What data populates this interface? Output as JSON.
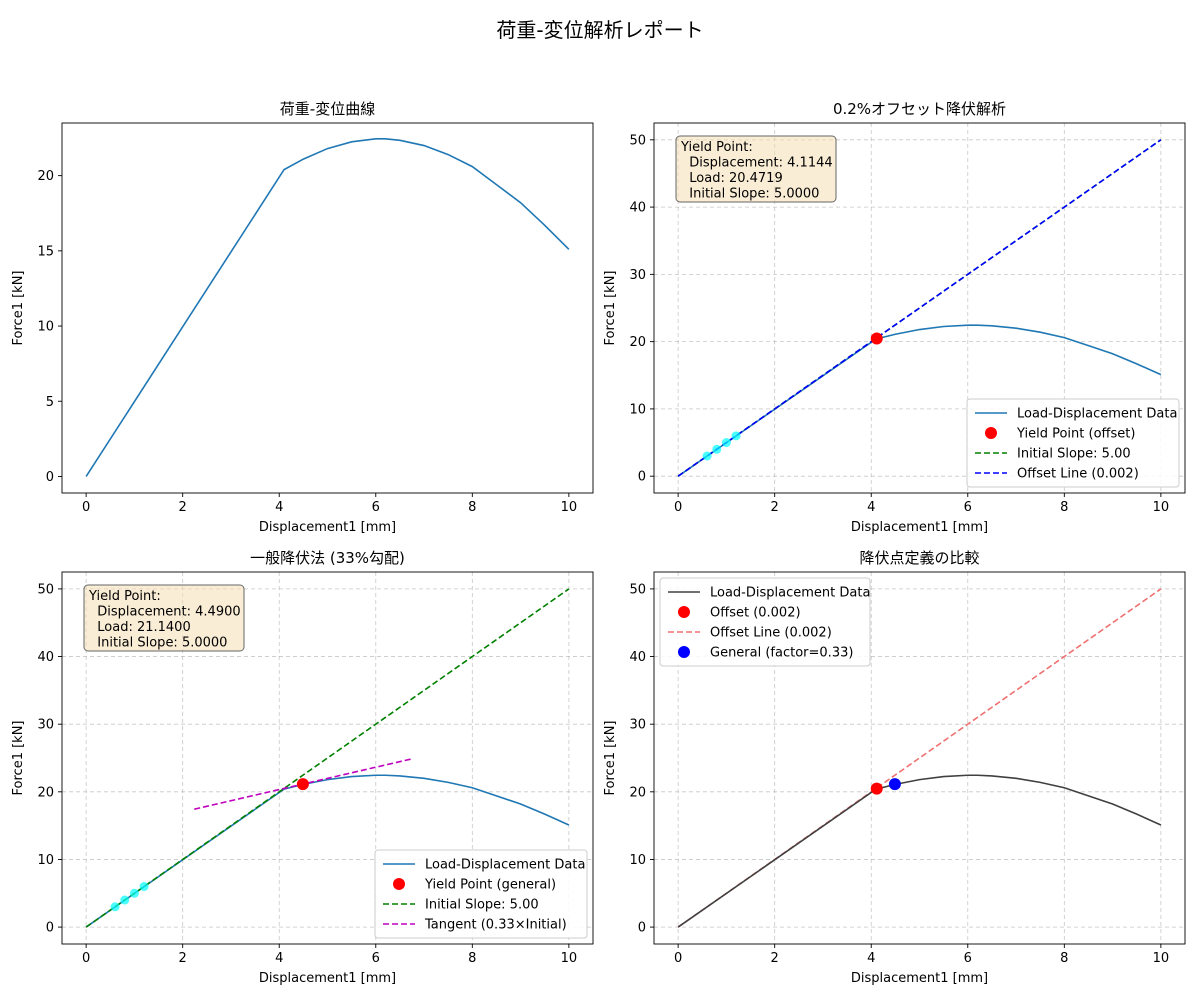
{
  "suptitle": "荷重-変位解析レポート",
  "colors": {
    "data": "#1f77b4",
    "yield": "#ff0000",
    "initial": "#008000",
    "offset": "#0000ff",
    "tangent": "#bf00bf",
    "cyan": "#00ffff",
    "dark": "#404040",
    "offset_light": "#f07070"
  },
  "chart_data": [
    {
      "type": "line",
      "title": "荷重-変位曲線",
      "xlabel": "Displacement1 [mm]",
      "ylabel": "Force1 [kN]",
      "xlim": [
        -0.5,
        10.5
      ],
      "ylim": [
        -1.1,
        23.5
      ],
      "xticks": [
        0,
        2,
        4,
        6,
        8,
        10
      ],
      "yticks": [
        0,
        5,
        10,
        15,
        20
      ],
      "grid": false,
      "series": [
        {
          "kind": "curve",
          "color": "data",
          "x": [
            0,
            4.1,
            4.5,
            5,
            5.5,
            6,
            6.2,
            6.5,
            7,
            7.5,
            8,
            8.5,
            9,
            9.5,
            10
          ],
          "y": [
            0,
            20.4,
            21.1,
            21.8,
            22.25,
            22.45,
            22.45,
            22.35,
            22.0,
            21.4,
            20.6,
            19.4,
            18.2,
            16.7,
            15.1
          ]
        }
      ]
    },
    {
      "type": "line",
      "title": "0.2%オフセット降伏解析",
      "xlabel": "Displacement1 [mm]",
      "ylabel": "Force1 [kN]",
      "xlim": [
        -0.5,
        10.5
      ],
      "ylim": [
        -2.5,
        52.5
      ],
      "xticks": [
        0,
        2,
        4,
        6,
        8,
        10
      ],
      "yticks": [
        0,
        10,
        20,
        30,
        40,
        50
      ],
      "grid": true,
      "legend": "lower-right",
      "annotation": [
        "Yield Point:",
        "  Displacement: 4.1144",
        "  Load: 20.4719",
        "  Initial Slope: 5.0000"
      ],
      "series": [
        {
          "kind": "curve",
          "name": "Load-Displacement Data",
          "color": "data",
          "x": [
            0,
            4.1,
            4.5,
            5,
            5.5,
            6,
            6.2,
            6.5,
            7,
            7.5,
            8,
            8.5,
            9,
            9.5,
            10
          ],
          "y": [
            0,
            20.4,
            21.1,
            21.8,
            22.25,
            22.45,
            22.45,
            22.35,
            22.0,
            21.4,
            20.6,
            19.4,
            18.2,
            16.7,
            15.1
          ]
        },
        {
          "kind": "dashed",
          "name": "Initial Slope: 5.00",
          "color": "initial",
          "x": [
            0,
            10
          ],
          "y": [
            0,
            50
          ]
        },
        {
          "kind": "dashed",
          "name": "Offset Line (0.002)",
          "color": "offset",
          "x": [
            0,
            10
          ],
          "y": [
            0,
            50
          ]
        },
        {
          "kind": "points",
          "color": "cyan",
          "x": [
            0.6,
            0.8,
            1.0,
            1.2
          ],
          "y": [
            3,
            4,
            5,
            6
          ]
        },
        {
          "kind": "marker",
          "name": "Yield Point (offset)",
          "color": "yield",
          "x": [
            4.1144
          ],
          "y": [
            20.4719
          ]
        }
      ],
      "legend_entries": [
        {
          "label": "Load-Displacement Data",
          "kind": "curve",
          "color": "data"
        },
        {
          "label": "Yield Point (offset)",
          "kind": "marker",
          "color": "yield"
        },
        {
          "label": "Initial Slope: 5.00",
          "kind": "dashed",
          "color": "initial"
        },
        {
          "label": "Offset Line (0.002)",
          "kind": "dashed",
          "color": "offset"
        }
      ]
    },
    {
      "type": "line",
      "title": "一般降伏法 (33%勾配)",
      "xlabel": "Displacement1 [mm]",
      "ylabel": "Force1 [kN]",
      "xlim": [
        -0.5,
        10.5
      ],
      "ylim": [
        -2.5,
        52.5
      ],
      "xticks": [
        0,
        2,
        4,
        6,
        8,
        10
      ],
      "yticks": [
        0,
        10,
        20,
        30,
        40,
        50
      ],
      "grid": true,
      "legend": "lower-right",
      "annotation": [
        "Yield Point:",
        "  Displacement: 4.4900",
        "  Load: 21.1400",
        "  Initial Slope: 5.0000"
      ],
      "series": [
        {
          "kind": "curve",
          "name": "Load-Displacement Data",
          "color": "data",
          "x": [
            0,
            4.1,
            4.5,
            5,
            5.5,
            6,
            6.2,
            6.5,
            7,
            7.5,
            8,
            8.5,
            9,
            9.5,
            10
          ],
          "y": [
            0,
            20.4,
            21.1,
            21.8,
            22.25,
            22.45,
            22.45,
            22.35,
            22.0,
            21.4,
            20.6,
            19.4,
            18.2,
            16.7,
            15.1
          ]
        },
        {
          "kind": "dashed",
          "name": "Initial Slope: 5.00",
          "color": "initial",
          "x": [
            0,
            10
          ],
          "y": [
            0,
            50
          ]
        },
        {
          "kind": "dashed",
          "name": "Tangent (0.33×Initial)",
          "color": "tangent",
          "x": [
            2.24,
            6.74
          ],
          "y": [
            17.43,
            24.86
          ]
        },
        {
          "kind": "points",
          "color": "cyan",
          "x": [
            0.6,
            0.8,
            1.0,
            1.2
          ],
          "y": [
            3,
            4,
            5,
            6
          ]
        },
        {
          "kind": "marker",
          "name": "Yield Point (general)",
          "color": "yield",
          "x": [
            4.49
          ],
          "y": [
            21.14
          ]
        }
      ],
      "legend_entries": [
        {
          "label": "Load-Displacement Data",
          "kind": "curve",
          "color": "data"
        },
        {
          "label": "Yield Point (general)",
          "kind": "marker",
          "color": "yield"
        },
        {
          "label": "Initial Slope: 5.00",
          "kind": "dashed",
          "color": "initial"
        },
        {
          "label": "Tangent (0.33×Initial)",
          "kind": "dashed",
          "color": "tangent"
        }
      ]
    },
    {
      "type": "line",
      "title": "降伏点定義の比較",
      "xlabel": "Displacement1 [mm]",
      "ylabel": "Force1 [kN]",
      "xlim": [
        -0.5,
        10.5
      ],
      "ylim": [
        -2.5,
        52.5
      ],
      "xticks": [
        0,
        2,
        4,
        6,
        8,
        10
      ],
      "yticks": [
        0,
        10,
        20,
        30,
        40,
        50
      ],
      "grid": true,
      "legend": "upper-left",
      "series": [
        {
          "kind": "dashed",
          "name": "Offset Line (0.002)",
          "color": "offset_light",
          "x": [
            0,
            10
          ],
          "y": [
            0,
            50
          ]
        },
        {
          "kind": "curve",
          "name": "Load-Displacement Data",
          "color": "dark",
          "x": [
            0,
            4.1,
            4.5,
            5,
            5.5,
            6,
            6.2,
            6.5,
            7,
            7.5,
            8,
            8.5,
            9,
            9.5,
            10
          ],
          "y": [
            0,
            20.4,
            21.1,
            21.8,
            22.25,
            22.45,
            22.45,
            22.35,
            22.0,
            21.4,
            20.6,
            19.4,
            18.2,
            16.7,
            15.1
          ]
        },
        {
          "kind": "marker",
          "name": "Offset (0.002)",
          "color": "yield",
          "x": [
            4.1144
          ],
          "y": [
            20.4719
          ]
        },
        {
          "kind": "marker",
          "name": "General (factor=0.33)",
          "color": "offset",
          "x": [
            4.49
          ],
          "y": [
            21.14
          ]
        }
      ],
      "legend_entries": [
        {
          "label": "Load-Displacement Data",
          "kind": "curve",
          "color": "dark"
        },
        {
          "label": "Offset (0.002)",
          "kind": "marker",
          "color": "yield"
        },
        {
          "label": "Offset Line (0.002)",
          "kind": "dashed",
          "color": "offset_light"
        },
        {
          "label": "General (factor=0.33)",
          "kind": "marker",
          "color": "offset"
        }
      ]
    }
  ]
}
